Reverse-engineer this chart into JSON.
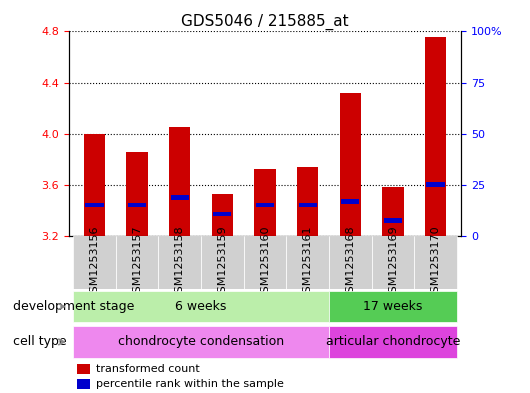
{
  "title": "GDS5046 / 215885_at",
  "samples": [
    "GSM1253156",
    "GSM1253157",
    "GSM1253158",
    "GSM1253159",
    "GSM1253160",
    "GSM1253161",
    "GSM1253168",
    "GSM1253169",
    "GSM1253170"
  ],
  "transformed_count": [
    4.0,
    3.86,
    4.05,
    3.53,
    3.72,
    3.74,
    4.32,
    3.58,
    4.76
  ],
  "percentile_rank": [
    3.44,
    3.44,
    3.5,
    3.37,
    3.44,
    3.44,
    3.47,
    3.32,
    3.6
  ],
  "baseline": 3.2,
  "ylim_left": [
    3.2,
    4.8
  ],
  "ylim_right": [
    0,
    100
  ],
  "yticks_left": [
    3.2,
    3.6,
    4.0,
    4.4,
    4.8
  ],
  "yticks_right": [
    0,
    25,
    50,
    75,
    100
  ],
  "bar_color": "#cc0000",
  "percentile_color": "#0000cc",
  "bar_width": 0.5,
  "development_stage_groups": [
    {
      "label": "6 weeks",
      "start": 0,
      "end": 5,
      "color": "#bbeeaa"
    },
    {
      "label": "17 weeks",
      "start": 6,
      "end": 8,
      "color": "#55cc55"
    }
  ],
  "cell_type_groups": [
    {
      "label": "chondrocyte condensation",
      "start": 0,
      "end": 5,
      "color": "#ee88ee"
    },
    {
      "label": "articular chondrocyte",
      "start": 6,
      "end": 8,
      "color": "#dd44dd"
    }
  ],
  "dev_stage_label": "development stage",
  "cell_type_label": "cell type",
  "legend_items": [
    {
      "color": "#cc0000",
      "label": "transformed count"
    },
    {
      "color": "#0000cc",
      "label": "percentile rank within the sample"
    }
  ],
  "title_fontsize": 11,
  "tick_label_fontsize": 8,
  "annotation_fontsize": 9,
  "legend_fontsize": 8
}
